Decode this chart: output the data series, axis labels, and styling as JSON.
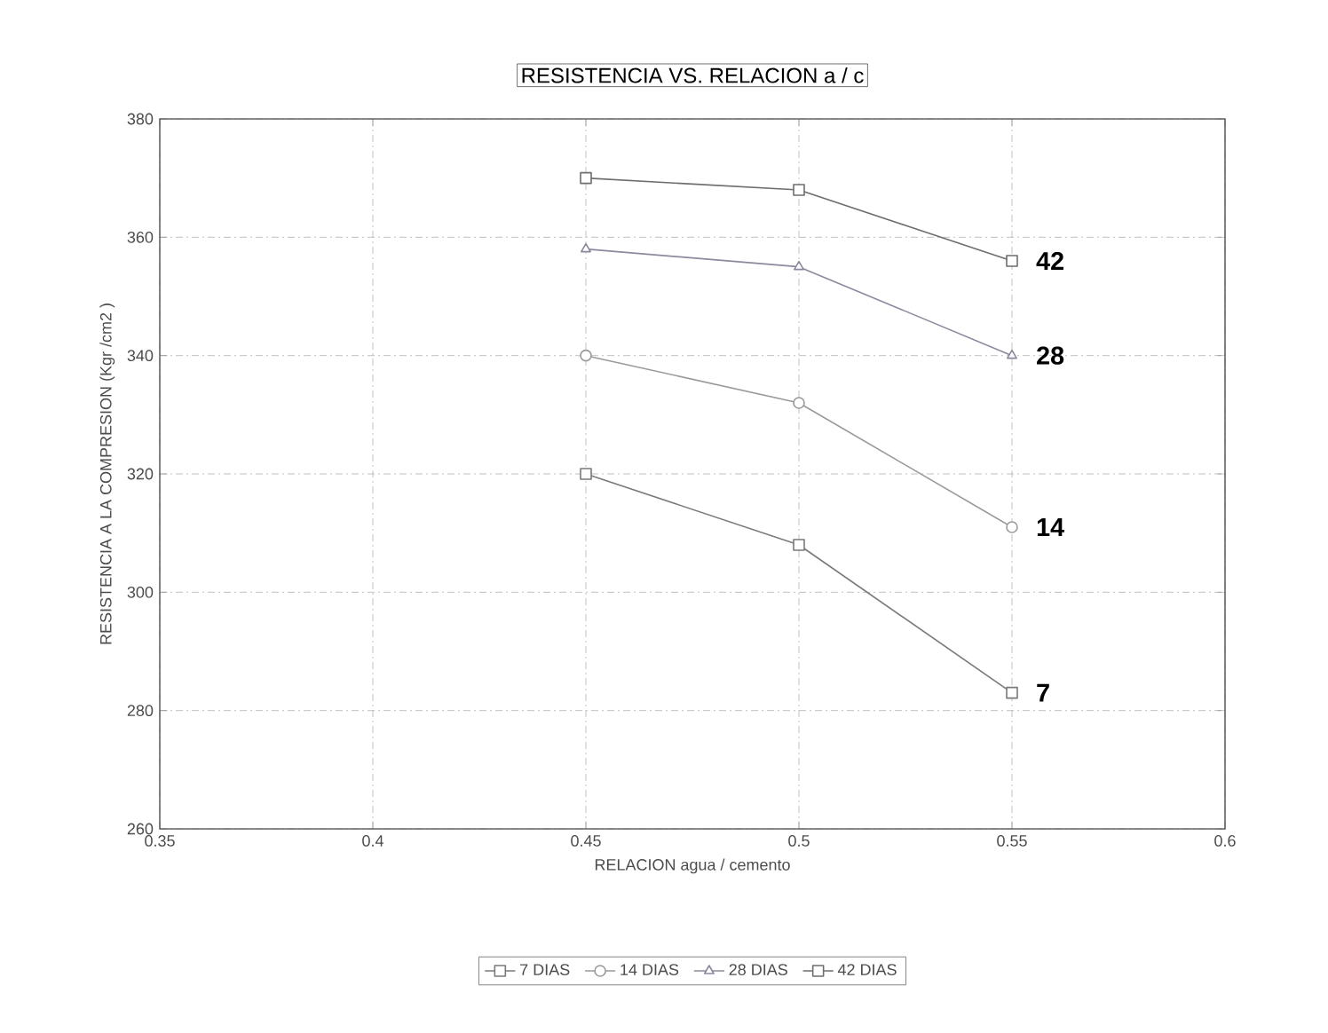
{
  "chart_data": {
    "type": "line",
    "title": "RESISTENCIA VS. RELACION a / c",
    "xlabel": "RELACION  agua / cemento",
    "ylabel": "RESISTENCIA A LA COMPRESION (Kgr /cm2 )",
    "x": [
      0.45,
      0.5,
      0.55
    ],
    "series": [
      {
        "name": "7 DIAS",
        "color": "#7a7a7a",
        "marker": "square",
        "values": [
          320,
          308,
          283
        ]
      },
      {
        "name": "14 DIAS",
        "color": "#9a9a9a",
        "marker": "circle",
        "values": [
          340,
          332,
          311
        ]
      },
      {
        "name": "28 DIAS",
        "color": "#8a8a9e",
        "marker": "triangle",
        "values": [
          358,
          355,
          340
        ]
      },
      {
        "name": "42 DIAS",
        "color": "#6e6e6e",
        "marker": "square",
        "values": [
          370,
          368,
          356
        ]
      }
    ],
    "annotations": [
      "7",
      "14",
      "28",
      "42"
    ],
    "xlim": [
      0.35,
      0.6
    ],
    "xticks": [
      0.35,
      0.4,
      0.45,
      0.5,
      0.55,
      0.6
    ],
    "ylim": [
      260,
      380
    ],
    "yticks": [
      260,
      280,
      300,
      320,
      340,
      360,
      380
    ],
    "grid": true,
    "legend": "bottom",
    "line_style": "solid"
  }
}
